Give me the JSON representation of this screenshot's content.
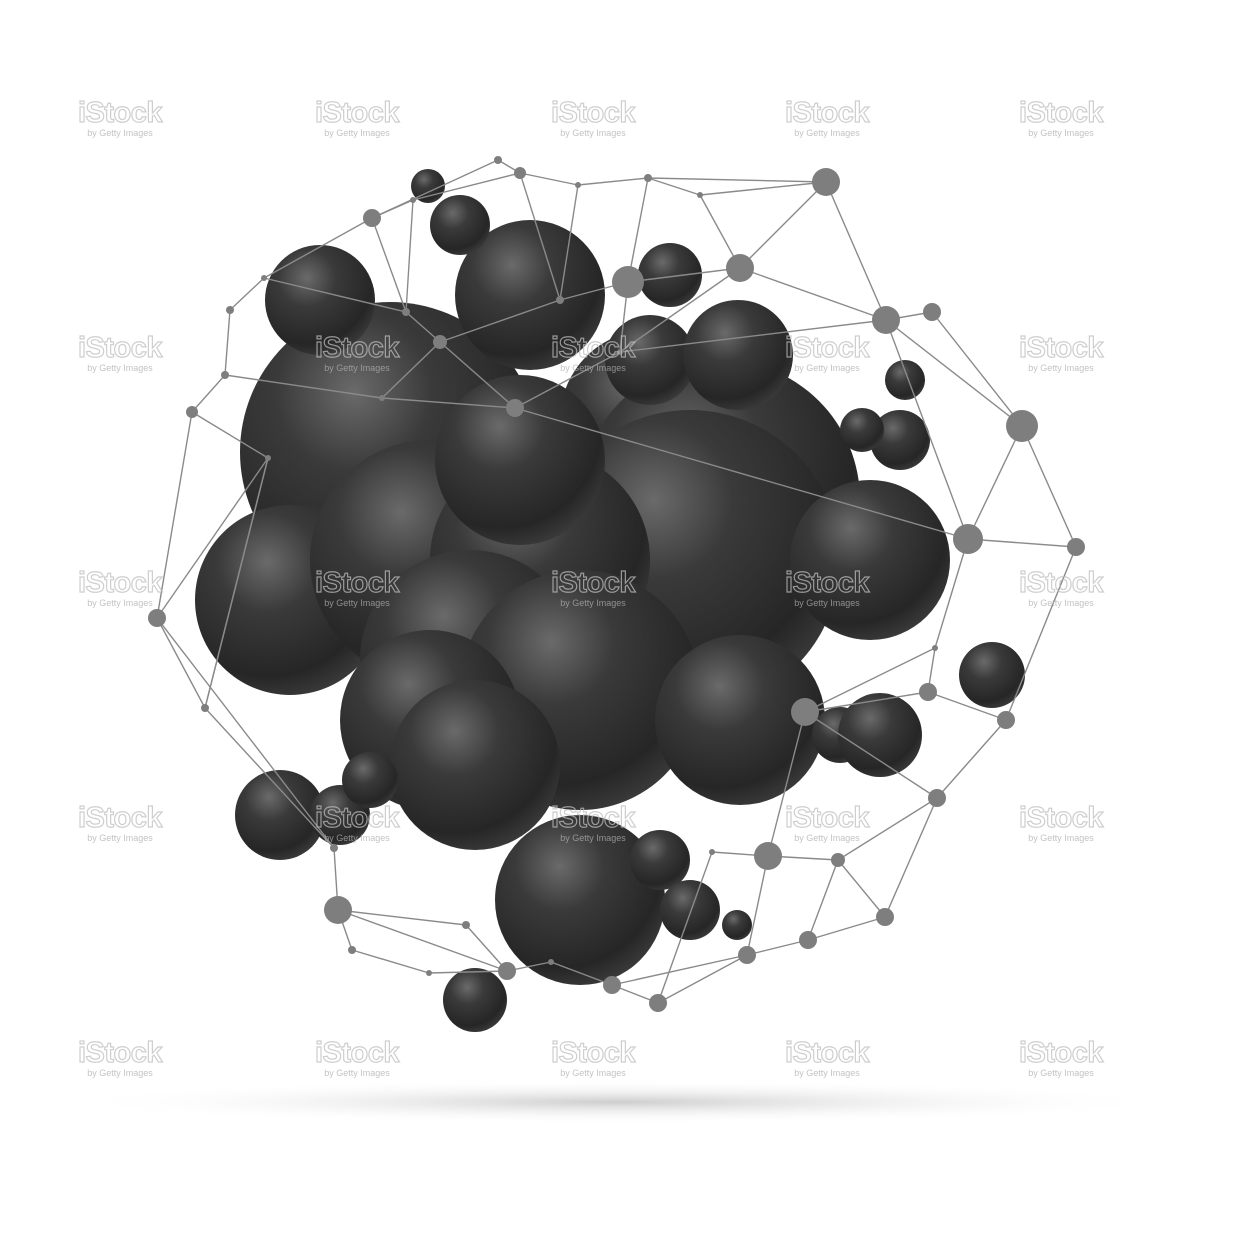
{
  "image": {
    "subject": "black glossy molecule spheres with wireframe",
    "colors": {
      "background": "#ffffff",
      "sphere": "#2e2e2e",
      "sphere_highlight": "#6a6a6a",
      "wireframe": "#808080",
      "shadow": "#d0d0d0"
    }
  },
  "watermark": {
    "brand": "iStock",
    "byline": "by Getty Images"
  }
}
